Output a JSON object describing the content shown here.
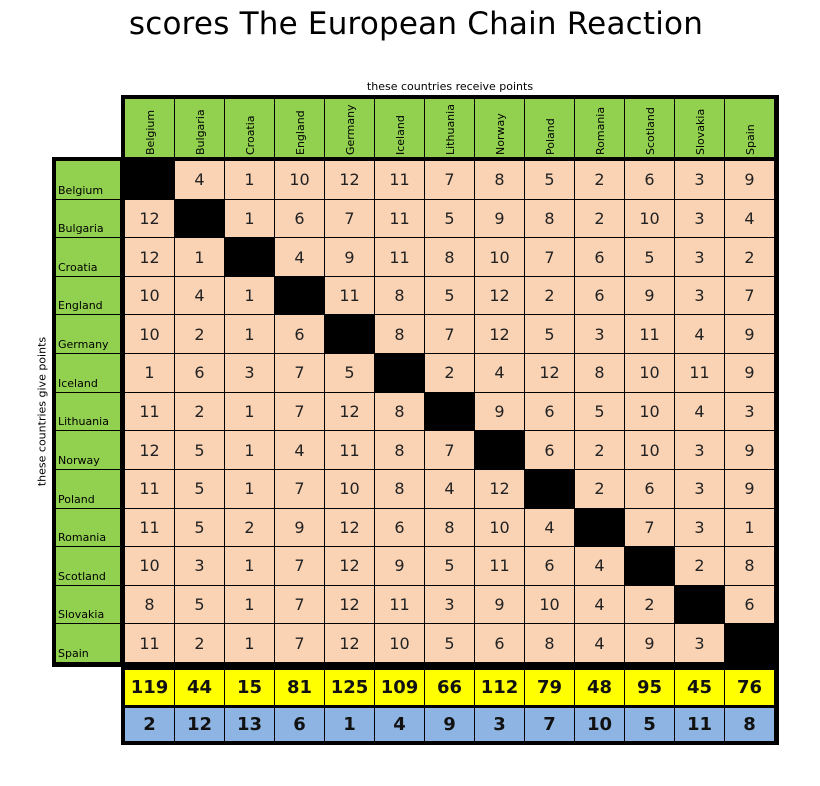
{
  "title": "scores The European Chain Reaction",
  "x_caption": "these countries receive points",
  "y_caption": "these countries give points",
  "colors": {
    "header_green": "#92d050",
    "cell_peach": "#fad3b5",
    "diagonal": "#000000",
    "total_yellow": "#ffff00",
    "rank_blue": "#8db4e2"
  },
  "chart_data": {
    "type": "table",
    "title": "scores The European Chain Reaction",
    "xlabel": "these countries receive points",
    "ylabel": "these countries give points",
    "columns": [
      "Belgium",
      "Bulgaria",
      "Croatia",
      "England",
      "Germany",
      "Iceland",
      "Lithuania",
      "Norway",
      "Poland",
      "Romania",
      "Scotland",
      "Slovakia",
      "Spain"
    ],
    "rows": [
      "Belgium",
      "Bulgaria",
      "Croatia",
      "England",
      "Germany",
      "Iceland",
      "Lithuania",
      "Norway",
      "Poland",
      "Romania",
      "Scotland",
      "Slovakia",
      "Spain"
    ],
    "values": [
      [
        null,
        4,
        1,
        10,
        12,
        11,
        7,
        8,
        5,
        2,
        6,
        3,
        9
      ],
      [
        12,
        null,
        1,
        6,
        7,
        11,
        5,
        9,
        8,
        2,
        10,
        3,
        4
      ],
      [
        12,
        1,
        null,
        4,
        9,
        11,
        8,
        10,
        7,
        6,
        5,
        3,
        2
      ],
      [
        10,
        4,
        1,
        null,
        11,
        8,
        5,
        12,
        2,
        6,
        9,
        3,
        7
      ],
      [
        10,
        2,
        1,
        6,
        null,
        8,
        7,
        12,
        5,
        3,
        11,
        4,
        9
      ],
      [
        1,
        6,
        3,
        7,
        5,
        null,
        2,
        4,
        12,
        8,
        10,
        11,
        9
      ],
      [
        11,
        2,
        1,
        7,
        12,
        8,
        null,
        9,
        6,
        5,
        10,
        4,
        3
      ],
      [
        12,
        5,
        1,
        4,
        11,
        8,
        7,
        null,
        6,
        2,
        10,
        3,
        9
      ],
      [
        11,
        5,
        1,
        7,
        10,
        8,
        4,
        12,
        null,
        2,
        6,
        3,
        9
      ],
      [
        11,
        5,
        2,
        9,
        12,
        6,
        8,
        10,
        4,
        null,
        7,
        3,
        1
      ],
      [
        10,
        3,
        1,
        7,
        12,
        9,
        5,
        11,
        6,
        4,
        null,
        2,
        8
      ],
      [
        8,
        5,
        1,
        7,
        12,
        11,
        3,
        9,
        10,
        4,
        2,
        null,
        6
      ],
      [
        11,
        2,
        1,
        7,
        12,
        10,
        5,
        6,
        8,
        4,
        9,
        3,
        null
      ]
    ],
    "totals": [
      119,
      44,
      15,
      81,
      125,
      109,
      66,
      112,
      79,
      48,
      95,
      45,
      76
    ],
    "ranks": [
      2,
      12,
      13,
      6,
      1,
      4,
      9,
      3,
      7,
      10,
      5,
      11,
      8
    ]
  }
}
